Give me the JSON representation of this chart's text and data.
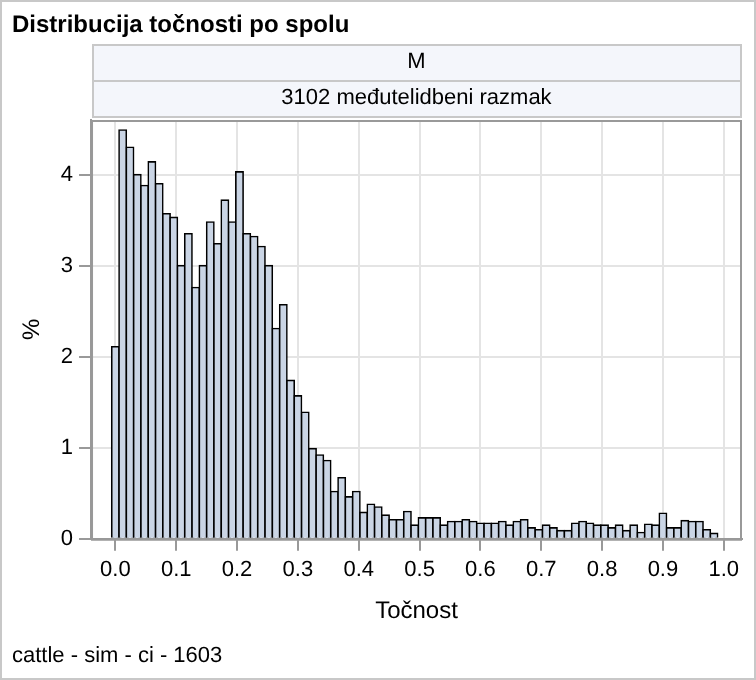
{
  "chart_data": {
    "type": "histogram",
    "title": "Distribucija točnosti po spolu",
    "subtitle": "M",
    "annotations": [
      "3102 međutelidbeni razmak",
      "cattle - sim - ci - 1603"
    ],
    "xlabel": "Točnost",
    "ylabel": "%",
    "color": "#cad5e5",
    "bins": [
      -0.006,
      0.006,
      0.018,
      0.03,
      0.042,
      0.054,
      0.066,
      0.078,
      0.09,
      0.102,
      0.114,
      0.126,
      0.138,
      0.15,
      0.162,
      0.174,
      0.186,
      0.198,
      0.21,
      0.222,
      0.234,
      0.246,
      0.258,
      0.27,
      0.282,
      0.294,
      0.306,
      0.318,
      0.33,
      0.342,
      0.354,
      0.366,
      0.378,
      0.39,
      0.402,
      0.414,
      0.426,
      0.438,
      0.45,
      0.462,
      0.474,
      0.486,
      0.498,
      0.51,
      0.522,
      0.534,
      0.546,
      0.558,
      0.57,
      0.582,
      0.594,
      0.606,
      0.618,
      0.63,
      0.642,
      0.654,
      0.666,
      0.678,
      0.69,
      0.702,
      0.714,
      0.726,
      0.738,
      0.75,
      0.762,
      0.774,
      0.786,
      0.798,
      0.81,
      0.822,
      0.834,
      0.846,
      0.858,
      0.87,
      0.882,
      0.894,
      0.906,
      0.918,
      0.93,
      0.942,
      0.954,
      0.966,
      0.978,
      0.99
    ],
    "values": [
      2.11,
      4.49,
      4.3,
      4.0,
      3.88,
      4.14,
      3.9,
      3.57,
      3.53,
      3.0,
      3.35,
      2.76,
      3.0,
      3.48,
      3.24,
      3.72,
      3.48,
      4.03,
      3.35,
      3.32,
      3.21,
      3.0,
      2.31,
      2.57,
      1.74,
      1.57,
      1.39,
      0.99,
      0.92,
      0.86,
      0.52,
      0.67,
      0.46,
      0.52,
      0.29,
      0.38,
      0.35,
      0.26,
      0.21,
      0.21,
      0.3,
      0.15,
      0.23,
      0.23,
      0.23,
      0.15,
      0.19,
      0.19,
      0.21,
      0.19,
      0.17,
      0.17,
      0.17,
      0.19,
      0.15,
      0.19,
      0.21,
      0.12,
      0.1,
      0.15,
      0.12,
      0.09,
      0.09,
      0.17,
      0.19,
      0.17,
      0.15,
      0.15,
      0.12,
      0.15,
      0.09,
      0.15,
      0.07,
      0.16,
      0.15,
      0.28,
      0.12,
      0.12,
      0.2,
      0.19,
      0.19,
      0.1,
      0.06
    ],
    "xlim": [
      -0.04,
      1.03
    ],
    "xticks": [
      {
        "value": 0,
        "label": "0.0"
      },
      {
        "value": 0.1,
        "label": "0.1"
      },
      {
        "value": 0.2,
        "label": "0.2"
      },
      {
        "value": 0.3,
        "label": "0.3"
      },
      {
        "value": 0.4,
        "label": "0.4"
      },
      {
        "value": 0.5,
        "label": "0.5"
      },
      {
        "value": 0.6,
        "label": "0.6"
      },
      {
        "value": 0.7,
        "label": "0.7"
      },
      {
        "value": 0.8,
        "label": "0.8"
      },
      {
        "value": 0.9,
        "label": "0.9"
      },
      {
        "value": 1,
        "label": "1.0"
      }
    ],
    "ylim": [
      0,
      4.6
    ],
    "yticks": [
      0,
      1,
      2,
      3,
      4
    ],
    "grid": true,
    "legend": false
  }
}
